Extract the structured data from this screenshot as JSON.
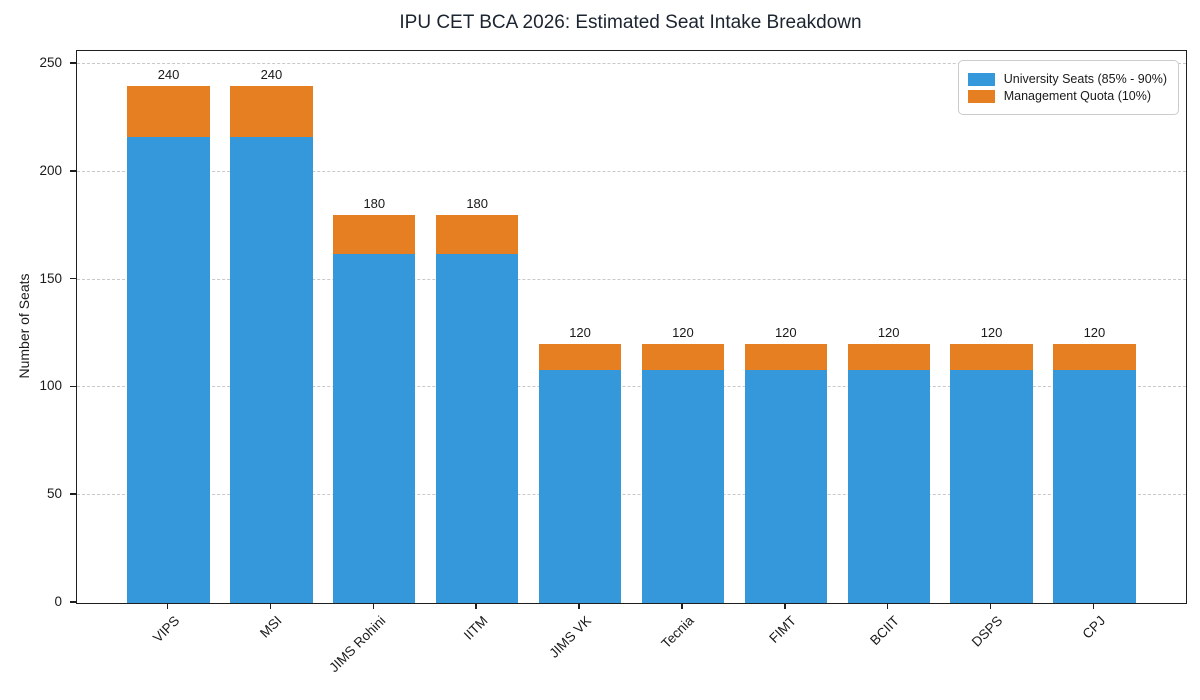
{
  "chart_data": {
    "type": "bar",
    "stacked": true,
    "title": "IPU CET BCA 2026: Estimated Seat Intake Breakdown",
    "ylabel": "Number of Seats",
    "xlabel": "",
    "categories": [
      "VIPS",
      "MSI",
      "JIMS Rohini",
      "IITM",
      "JIMS VK",
      "Tecnia",
      "FIMT",
      "BCIIT",
      "DSPS",
      "CPJ"
    ],
    "series": [
      {
        "name": "University Seats (85% - 90%)",
        "color": "#3498db",
        "values": [
          216,
          216,
          162,
          162,
          108,
          108,
          108,
          108,
          108,
          108
        ]
      },
      {
        "name": "Management Quota (10%)",
        "color": "#e67e22",
        "values": [
          24,
          24,
          18,
          18,
          12,
          12,
          12,
          12,
          12,
          12
        ]
      }
    ],
    "bar_totals": [
      240,
      240,
      180,
      180,
      120,
      120,
      120,
      120,
      120,
      120
    ],
    "yticks": [
      0,
      50,
      100,
      150,
      200,
      250
    ],
    "ylim": [
      0,
      256
    ],
    "grid": "horizontal-dashed",
    "grid_color": "#c9c9c9",
    "spine_color": "#1f1f1f",
    "legend_position": "upper right",
    "x_tick_rotation_deg": 45
  },
  "colors": {
    "university_seats": "#3498db",
    "management_quota": "#e67e22",
    "background": "#ffffff",
    "text": "#1a1a1a"
  }
}
